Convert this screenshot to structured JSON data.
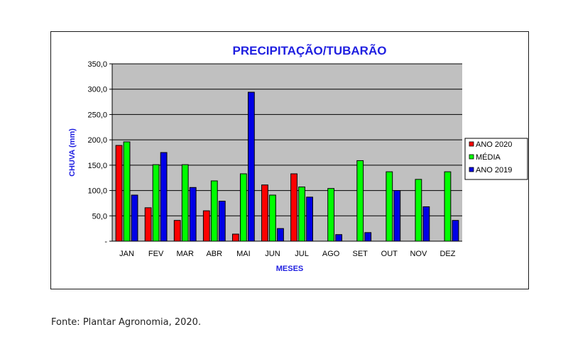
{
  "chart_data": {
    "type": "bar",
    "title": "PRECIPITAÇÃO/TUBARÃO",
    "xlabel": "MESES",
    "ylabel": "CHUVA (mm)",
    "ylim": [
      0,
      350
    ],
    "yticks": [
      0,
      50,
      100,
      150,
      200,
      250,
      300,
      350
    ],
    "ytick_labels": [
      "-",
      "50,0",
      "100,0",
      "150,0",
      "200,0",
      "250,0",
      "300,0",
      "350,0"
    ],
    "grid": true,
    "legend_position": "right",
    "categories": [
      "JAN",
      "FEV",
      "MAR",
      "ABR",
      "MAI",
      "JUN",
      "JUL",
      "AGO",
      "SET",
      "OUT",
      "NOV",
      "DEZ"
    ],
    "series": [
      {
        "name": "ANO 2020",
        "color": "#ff0000",
        "values": [
          189,
          66,
          41,
          60,
          14,
          111,
          133,
          null,
          null,
          null,
          null,
          null
        ]
      },
      {
        "name": "MÉDIA",
        "color": "#00ff00",
        "values": [
          196,
          151,
          151,
          119,
          133,
          91,
          107,
          104,
          159,
          137,
          122,
          137
        ]
      },
      {
        "name": "ANO 2019",
        "color": "#0000e6",
        "values": [
          91,
          175,
          106,
          79,
          294,
          25,
          87,
          13,
          17,
          100,
          68,
          41
        ]
      }
    ],
    "plot_background": "#c0c0c0"
  },
  "source_note": "Fonte: Plantar Agronomia, 2020."
}
